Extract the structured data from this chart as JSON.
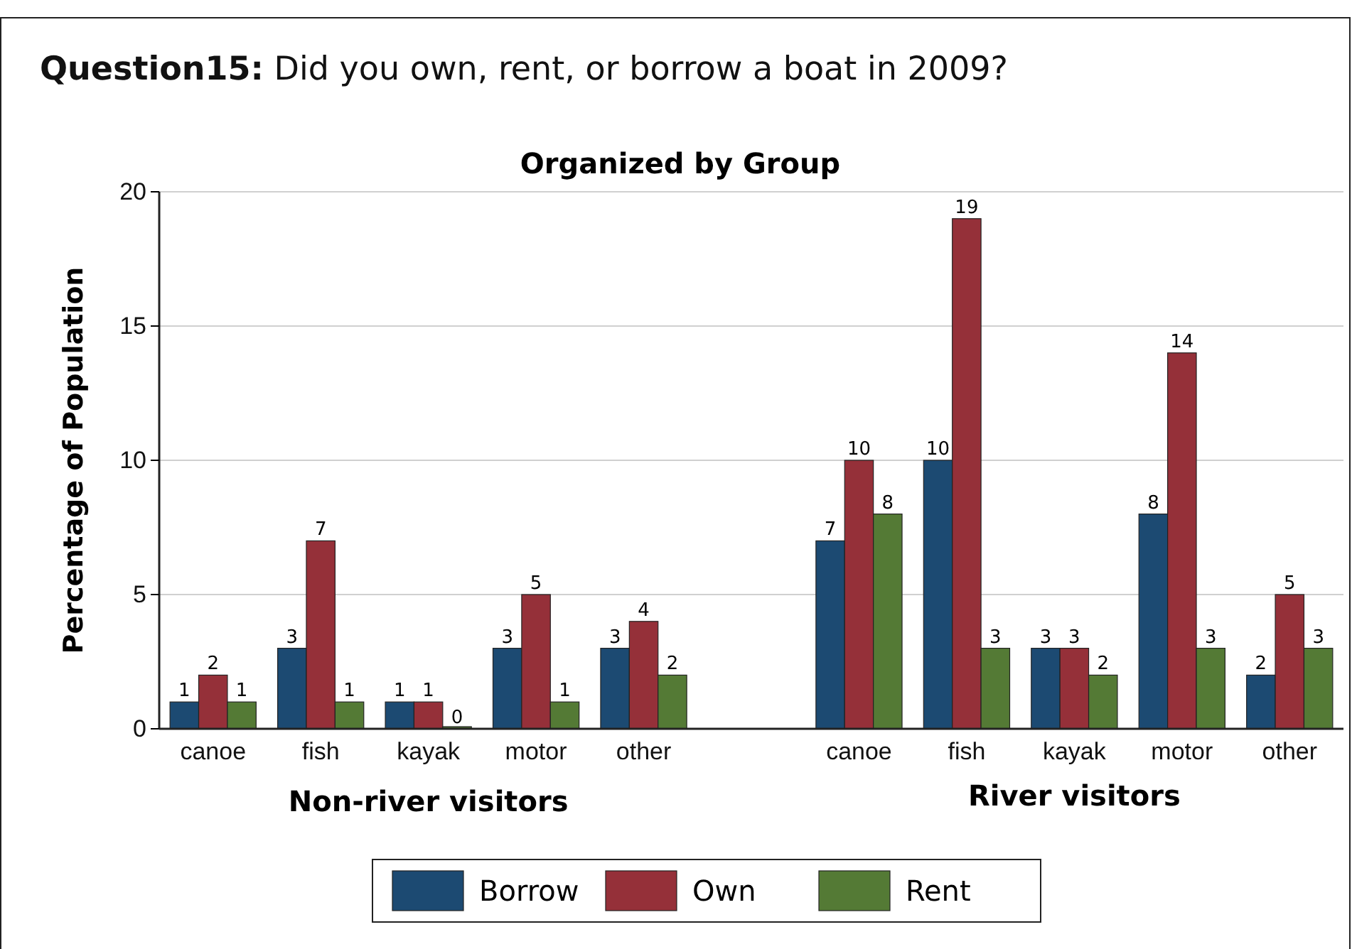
{
  "chart_data": {
    "type": "bar",
    "title": "Question15: Did you own, rent, or borrow a boat in 2009?",
    "subtitle": "Organized by Group",
    "ylabel": "Percentage of Population",
    "categories": [
      "canoe",
      "fish",
      "kayak",
      "motor",
      "other",
      null,
      "canoe",
      "fish",
      "kayak",
      "motor",
      "other"
    ],
    "series": [
      {
        "name": "Borrow",
        "color": "#1c4a72",
        "values": [
          1,
          3,
          1,
          3,
          3,
          null,
          7,
          10,
          3,
          8,
          2
        ]
      },
      {
        "name": "Own",
        "color": "#953039",
        "values": [
          2,
          7,
          1,
          5,
          4,
          null,
          10,
          19,
          3,
          14,
          5
        ]
      },
      {
        "name": "Rent",
        "color": "#547a35",
        "values": [
          1,
          1,
          0,
          1,
          2,
          null,
          8,
          3,
          2,
          3,
          3
        ]
      }
    ],
    "ylim": [
      0,
      20
    ],
    "yticks": [
      0,
      5,
      10,
      15,
      20
    ],
    "grid": "y",
    "legend": "bottom",
    "data_labels": true,
    "annotations": [
      "Non-river visitors",
      "River visitors"
    ]
  }
}
